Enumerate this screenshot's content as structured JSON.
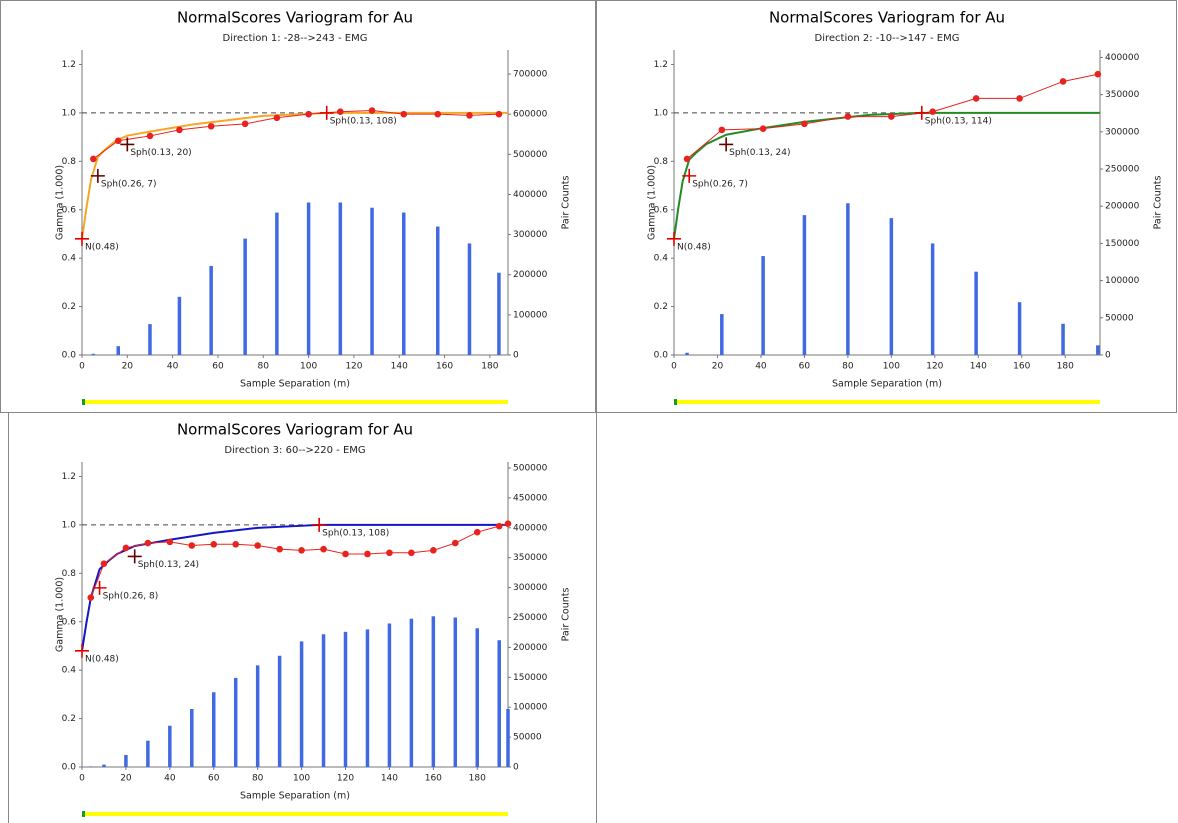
{
  "chart_data": [
    {
      "type": "variogram",
      "title": "NormalScores  Variogram for Au",
      "subtitle": "Direction 1: -28-->243 - EMG",
      "xlabel": "Sample Separation (m)",
      "ylabel": "Gamma (1.000)",
      "y2label": "Pair Counts",
      "xlim": [
        0,
        188
      ],
      "xticks": [
        0,
        20,
        40,
        60,
        80,
        100,
        120,
        140,
        160,
        180
      ],
      "ylim": [
        0,
        1.26
      ],
      "yticks": [
        {
          "value": 0,
          "label": "0.0"
        },
        0.2,
        0.4,
        0.6,
        0.8,
        {
          "value": 1,
          "label": "1.0"
        },
        1.2
      ],
      "y2lim": [
        0,
        760000
      ],
      "y2ticks": [
        0,
        100000,
        200000,
        300000,
        400000,
        500000,
        600000,
        700000
      ],
      "sill": 1,
      "series": [
        {
          "type": "bar",
          "axis": "y2",
          "color": "#4169e1",
          "x": [
            5,
            16,
            30,
            43,
            57,
            72,
            86,
            100,
            114,
            128,
            142,
            157,
            171,
            184
          ],
          "values": [
            3000,
            22000,
            77000,
            145000,
            222000,
            290000,
            355000,
            380000,
            380000,
            367000,
            355000,
            320000,
            278000,
            205000
          ]
        },
        {
          "type": "model",
          "color": "#f5a623",
          "x": [
            0,
            2,
            4,
            7,
            10,
            15,
            20,
            30,
            50,
            80,
            108,
            188
          ],
          "values": [
            0.48,
            0.611,
            0.725,
            0.818,
            0.847,
            0.886,
            0.906,
            0.923,
            0.954,
            0.988,
            1,
            1
          ]
        },
        {
          "type": "points",
          "color": "#e8231e",
          "x": [
            5,
            16,
            30,
            43,
            57,
            72,
            86,
            100,
            114,
            128,
            142,
            157,
            171,
            184
          ],
          "values": [
            0.81,
            0.885,
            0.905,
            0.93,
            0.945,
            0.955,
            0.98,
            0.995,
            1.005,
            1.01,
            0.995,
            0.995,
            0.99,
            0.995
          ]
        }
      ],
      "annotations": [
        {
          "x": 0,
          "y": 0.48,
          "label": "N(0.48)",
          "color": "#e00000"
        },
        {
          "x": 7,
          "y": 0.74,
          "label": "Sph(0.26, 7)",
          "color": "#600000"
        },
        {
          "x": 20,
          "y": 0.87,
          "label": "Sph(0.13, 20)",
          "color": "#600000"
        },
        {
          "x": 108,
          "y": 1,
          "label": "Sph(0.13, 108)",
          "color": "#e00000"
        }
      ]
    },
    {
      "type": "variogram",
      "title": "NormalScores  Variogram for Au",
      "subtitle": "Direction 2: -10-->147 - EMG",
      "xlabel": "Sample Separation (m)",
      "ylabel": "Gamma (1.000)",
      "y2label": "Pair Counts",
      "xlim": [
        0,
        196
      ],
      "xticks": [
        0,
        20,
        40,
        60,
        80,
        100,
        120,
        140,
        160,
        180
      ],
      "ylim": [
        0,
        1.26
      ],
      "yticks": [
        {
          "value": 0,
          "label": "0.0"
        },
        0.2,
        0.4,
        0.6,
        0.8,
        {
          "value": 1,
          "label": "1.0"
        },
        1.2
      ],
      "y2lim": [
        0,
        410000
      ],
      "y2ticks": [
        0,
        50000,
        100000,
        150000,
        200000,
        250000,
        300000,
        350000,
        400000
      ],
      "sill": 1,
      "series": [
        {
          "type": "bar",
          "axis": "y2",
          "color": "#4169e1",
          "x": [
            6,
            22,
            41,
            60,
            80,
            100,
            119,
            139,
            159,
            179,
            195
          ],
          "values": [
            3000,
            55000,
            133000,
            188000,
            204000,
            184000,
            150000,
            112000,
            71000,
            42000,
            13000
          ]
        },
        {
          "type": "model",
          "color": "#228b22",
          "x": [
            0,
            2,
            4,
            7,
            10,
            15,
            24,
            40,
            60,
            90,
            114,
            196
          ],
          "values": [
            0.48,
            0.608,
            0.718,
            0.807,
            0.834,
            0.872,
            0.91,
            0.936,
            0.963,
            0.992,
            1,
            1
          ]
        },
        {
          "type": "points",
          "color": "#e8231e",
          "x": [
            6,
            22,
            41,
            60,
            80,
            100,
            119,
            139,
            159,
            179,
            195
          ],
          "values": [
            0.81,
            0.93,
            0.935,
            0.955,
            0.985,
            0.985,
            1.005,
            1.06,
            1.06,
            1.13,
            1.16
          ]
        }
      ],
      "annotations": [
        {
          "x": 0,
          "y": 0.48,
          "label": "N(0.48)",
          "color": "#e00000"
        },
        {
          "x": 7,
          "y": 0.74,
          "label": "Sph(0.26, 7)",
          "color": "#e00000"
        },
        {
          "x": 24,
          "y": 0.87,
          "label": "Sph(0.13, 24)",
          "color": "#600000"
        },
        {
          "x": 114,
          "y": 1,
          "label": "Sph(0.13, 114)",
          "color": "#e00000"
        }
      ]
    },
    {
      "type": "variogram",
      "title": "NormalScores  Variogram for Au",
      "subtitle": "Direction 3: 60-->220 - EMG",
      "xlabel": "Sample Separation (m)",
      "ylabel": "Gamma (1.000)",
      "y2label": "Pair Counts",
      "xlim": [
        0,
        194
      ],
      "xticks": [
        0,
        20,
        40,
        60,
        80,
        100,
        120,
        140,
        160,
        180
      ],
      "ylim": [
        0,
        1.26
      ],
      "yticks": [
        {
          "value": 0,
          "label": "0.0"
        },
        0.2,
        0.4,
        0.6,
        0.8,
        {
          "value": 1,
          "label": "1.0"
        },
        1.2
      ],
      "y2lim": [
        0,
        510000
      ],
      "y2ticks": [
        0,
        50000,
        100000,
        150000,
        200000,
        250000,
        300000,
        350000,
        400000,
        450000,
        500000
      ],
      "sill": 1,
      "series": [
        {
          "type": "bar",
          "axis": "y2",
          "color": "#4169e1",
          "x": [
            4,
            10,
            20,
            30,
            40,
            50,
            60,
            70,
            80,
            90,
            100,
            110,
            120,
            130,
            140,
            150,
            160,
            170,
            180,
            190,
            194
          ],
          "values": [
            1000,
            4000,
            20000,
            44000,
            69000,
            97000,
            125000,
            149000,
            170000,
            186000,
            210000,
            222000,
            226000,
            230000,
            240000,
            248000,
            252000,
            250000,
            232000,
            212000,
            97000
          ]
        },
        {
          "type": "model",
          "color": "#1414c8",
          "x": [
            0,
            2,
            4,
            8,
            12,
            16,
            24,
            40,
            60,
            80,
            108,
            194
          ],
          "values": [
            0.48,
            0.595,
            0.698,
            0.817,
            0.851,
            0.88,
            0.913,
            0.939,
            0.967,
            0.988,
            1,
            1
          ]
        },
        {
          "type": "points",
          "color": "#e8231e",
          "x": [
            4,
            10,
            20,
            30,
            40,
            50,
            60,
            70,
            80,
            90,
            100,
            110,
            120,
            130,
            140,
            150,
            160,
            170,
            180,
            190,
            194
          ],
          "values": [
            0.7,
            0.84,
            0.905,
            0.925,
            0.93,
            0.915,
            0.92,
            0.92,
            0.915,
            0.9,
            0.895,
            0.9,
            0.88,
            0.88,
            0.885,
            0.885,
            0.895,
            0.925,
            0.97,
            0.995,
            1.005
          ]
        }
      ],
      "annotations": [
        {
          "x": 0,
          "y": 0.48,
          "label": "N(0.48)",
          "color": "#e00000"
        },
        {
          "x": 8,
          "y": 0.74,
          "label": "Sph(0.26, 8)",
          "color": "#e00000"
        },
        {
          "x": 24,
          "y": 0.87,
          "label": "Sph(0.13, 24)",
          "color": "#600000"
        },
        {
          "x": 108,
          "y": 1,
          "label": "Sph(0.13, 108)",
          "color": "#e00000"
        }
      ]
    }
  ]
}
